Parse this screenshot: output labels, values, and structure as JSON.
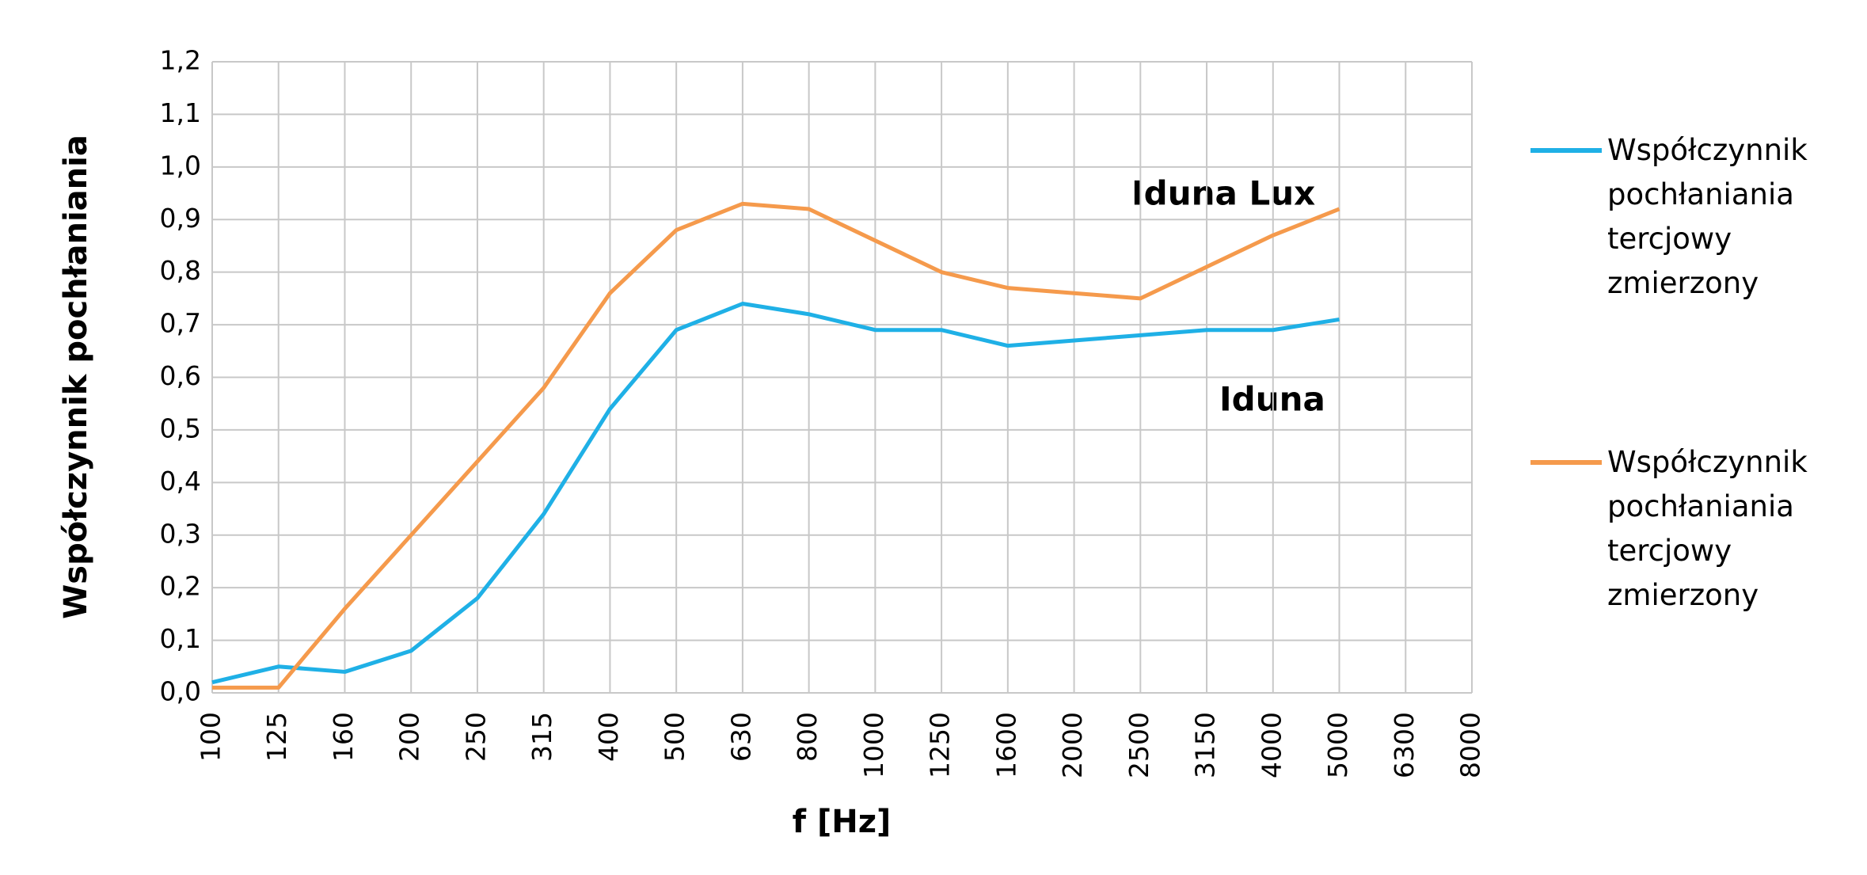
{
  "chart_data": {
    "type": "line",
    "y_label": "Współczynnik pochłaniania",
    "x_label": "f [Hz]",
    "annotations": [
      "Iduna Lux",
      "Iduna"
    ],
    "categories": [
      "100",
      "125",
      "160",
      "200",
      "250",
      "315",
      "400",
      "500",
      "630",
      "800",
      "1000",
      "1250",
      "1600",
      "2000",
      "2500",
      "3150",
      "4000",
      "5000",
      "6300",
      "8000"
    ],
    "series": [
      {
        "name": "Współczynnik pochłaniania tercjowy zmierzony",
        "color": "#1fb0e6",
        "values": [
          0.02,
          0.05,
          0.04,
          0.08,
          0.18,
          0.34,
          0.54,
          0.69,
          0.74,
          0.72,
          0.69,
          0.69,
          0.66,
          0.67,
          0.68,
          0.69,
          0.69,
          0.71,
          null,
          null
        ]
      },
      {
        "name": "Współczynnik pochłaniania tercjowy zmierzony",
        "color": "#f59a4c",
        "values": [
          0.01,
          0.01,
          0.16,
          0.3,
          0.44,
          0.58,
          0.76,
          0.88,
          0.93,
          0.92,
          0.86,
          0.8,
          0.77,
          0.76,
          0.75,
          0.81,
          0.87,
          0.92,
          null,
          null
        ]
      }
    ],
    "ylim": [
      0,
      1.2
    ],
    "yticks": [
      {
        "value": 0,
        "label": "0,0"
      },
      {
        "value": 0.1,
        "label": "0,1"
      },
      {
        "value": 0.2,
        "label": "0,2"
      },
      {
        "value": 0.3,
        "label": "0,3"
      },
      {
        "value": 0.4,
        "label": "0,4"
      },
      {
        "value": 0.5,
        "label": "0,5"
      },
      {
        "value": 0.6,
        "label": "0,6"
      },
      {
        "value": 0.7,
        "label": "0,7"
      },
      {
        "value": 0.8,
        "label": "0,8"
      },
      {
        "value": 0.9,
        "label": "0,9"
      },
      {
        "value": 1.0,
        "label": "1,0"
      },
      {
        "value": 1.1,
        "label": "1,1"
      },
      {
        "value": 1.2,
        "label": "1,2"
      }
    ],
    "grid": true,
    "legend": "right"
  }
}
